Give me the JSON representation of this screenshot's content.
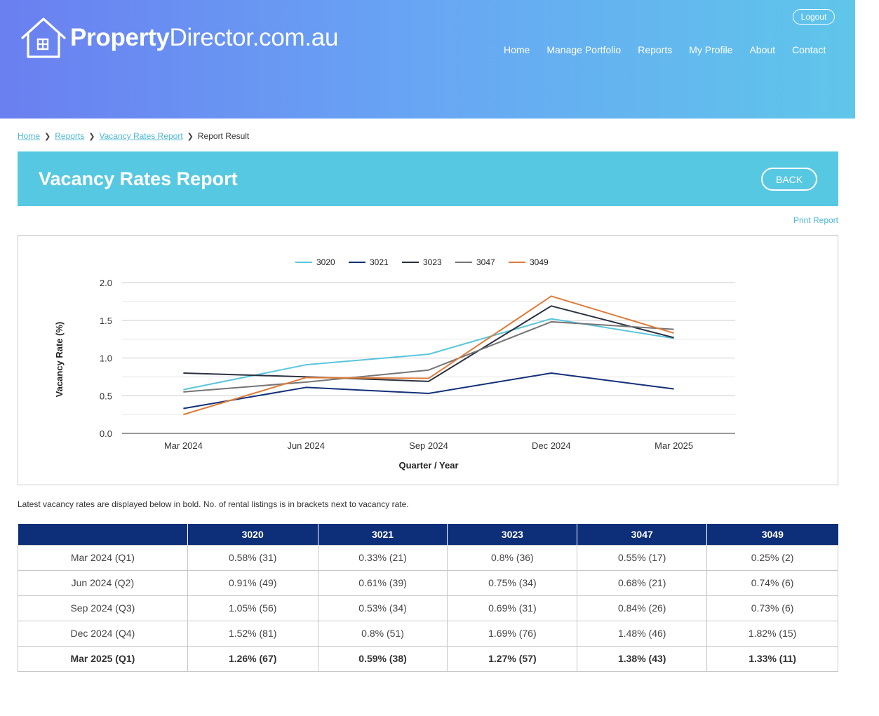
{
  "header": {
    "logo_bold": "Property",
    "logo_rest": "Director.com.au",
    "logout_label": "Logout",
    "nav": [
      "Home",
      "Manage Portfolio",
      "Reports",
      "My Profile",
      "About",
      "Contact"
    ]
  },
  "breadcrumb": {
    "items": [
      "Home",
      "Reports",
      "Vacancy Rates Report"
    ],
    "current": "Report Result"
  },
  "banner": {
    "title": "Vacancy Rates Report",
    "back_label": "BACK"
  },
  "print_label": "Print Report",
  "note": "Latest vacancy rates are displayed below in bold. No. of rental listings is in brackets next to vacancy rate.",
  "colors": {
    "3020": "#5bc5dc",
    "3021": "#13307a",
    "3023": "#2b3140",
    "3047": "#757575",
    "3049": "#e07b39",
    "header_start": "#6a7ff0",
    "header_end": "#5fc6ea",
    "banner": "#57c8e2",
    "table_header": "#0d2e79"
  },
  "chart_data": {
    "type": "line",
    "title": "",
    "xlabel": "Quarter / Year",
    "ylabel": "Vacancy Rate (%)",
    "ylim": [
      0,
      2.0
    ],
    "yticks": [
      "0.0",
      "0.5",
      "1.0",
      "1.5",
      "2.0"
    ],
    "grid": true,
    "legend_position": "top-center",
    "categories": [
      "Mar 2024",
      "Jun 2024",
      "Sep 2024",
      "Dec 2024",
      "Mar 2025"
    ],
    "series": [
      {
        "name": "3020",
        "values": [
          0.58,
          0.91,
          1.05,
          1.52,
          1.26
        ]
      },
      {
        "name": "3021",
        "values": [
          0.33,
          0.61,
          0.53,
          0.8,
          0.59
        ]
      },
      {
        "name": "3023",
        "values": [
          0.8,
          0.75,
          0.69,
          1.69,
          1.27
        ]
      },
      {
        "name": "3047",
        "values": [
          0.55,
          0.68,
          0.84,
          1.48,
          1.38
        ]
      },
      {
        "name": "3049",
        "values": [
          0.25,
          0.74,
          0.73,
          1.82,
          1.33
        ]
      }
    ]
  },
  "table": {
    "headers": [
      "",
      "3020",
      "3021",
      "3023",
      "3047",
      "3049"
    ],
    "rows": [
      [
        "Mar 2024 (Q1)",
        "0.58% (31)",
        "0.33% (21)",
        "0.8% (36)",
        "0.55% (17)",
        "0.25% (2)"
      ],
      [
        "Jun 2024 (Q2)",
        "0.91% (49)",
        "0.61% (39)",
        "0.75% (34)",
        "0.68% (21)",
        "0.74% (6)"
      ],
      [
        "Sep 2024 (Q3)",
        "1.05% (56)",
        "0.53% (34)",
        "0.69% (31)",
        "0.84% (26)",
        "0.73% (6)"
      ],
      [
        "Dec 2024 (Q4)",
        "1.52% (81)",
        "0.8% (51)",
        "1.69% (76)",
        "1.48% (46)",
        "1.82% (15)"
      ],
      [
        "Mar 2025 (Q1)",
        "1.26% (67)",
        "0.59% (38)",
        "1.27% (57)",
        "1.38% (43)",
        "1.33% (11)"
      ]
    ]
  }
}
